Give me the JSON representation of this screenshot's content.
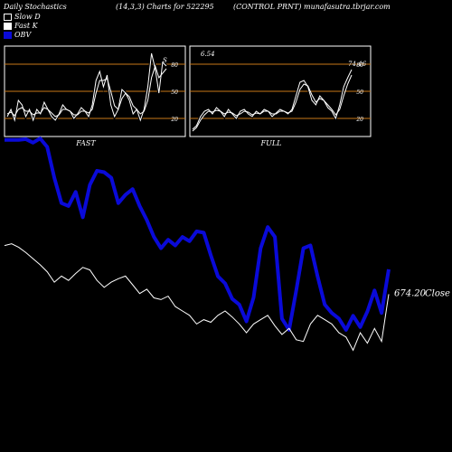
{
  "header": {
    "title_left": "Daily Stochastics",
    "title_mid": "(14,3,3) Charts for 522295",
    "title_right": "(CONTROL PRNT) munafasutra.tbrjar.com"
  },
  "legend": {
    "items": [
      {
        "label": "Slow  D",
        "color": "#000000",
        "border": "#ffffff"
      },
      {
        "label": "Fast K",
        "color": "#ffffff",
        "border": "#ffffff"
      },
      {
        "label": "OBV",
        "color": "#0a0ad8",
        "border": "#0a0ad8"
      }
    ]
  },
  "colors": {
    "background": "#000000",
    "price_line": "#ffffff",
    "obv_line": "#0a0ad8",
    "panel_border": "#ffffff",
    "level_lines": "#c87818"
  },
  "chart_data": [
    {
      "type": "line",
      "panel": "fast",
      "label": "FAST",
      "end_label": "S",
      "ytick_labels": [
        "80",
        "50",
        "20"
      ],
      "levels": [
        80,
        50,
        20
      ],
      "ylim": [
        0,
        100
      ],
      "series": [
        {
          "name": "Fast K",
          "values": [
            22,
            30,
            18,
            40,
            35,
            22,
            30,
            18,
            30,
            25,
            38,
            30,
            22,
            18,
            25,
            35,
            30,
            28,
            20,
            25,
            32,
            28,
            22,
            35,
            62,
            72,
            55,
            68,
            35,
            22,
            30,
            52,
            48,
            40,
            25,
            30,
            18,
            30,
            55,
            92,
            75,
            48,
            82,
            78
          ]
        },
        {
          "name": "Slow  D",
          "values": [
            25,
            27,
            23,
            30,
            32,
            28,
            28,
            24,
            26,
            26,
            32,
            30,
            26,
            22,
            24,
            30,
            30,
            28,
            24,
            24,
            28,
            28,
            26,
            30,
            48,
            62,
            62,
            64,
            50,
            34,
            30,
            42,
            48,
            44,
            34,
            30,
            25,
            28,
            40,
            65,
            78,
            65,
            70,
            75
          ]
        }
      ]
    },
    {
      "type": "line",
      "panel": "full",
      "label": "FULL",
      "start_label": "6.54",
      "end_label": "74.46",
      "ytick_labels": [
        "80",
        "50",
        "20"
      ],
      "levels": [
        80,
        50,
        20
      ],
      "ylim": [
        0,
        100
      ],
      "series": [
        {
          "name": "Fast K",
          "values": [
            8,
            12,
            22,
            28,
            30,
            25,
            32,
            28,
            22,
            30,
            25,
            20,
            28,
            30,
            25,
            22,
            28,
            25,
            30,
            28,
            22,
            26,
            30,
            28,
            25,
            30,
            45,
            60,
            62,
            55,
            40,
            35,
            45,
            40,
            32,
            28,
            20,
            35,
            55,
            65,
            74
          ]
        },
        {
          "name": "Slow  D",
          "values": [
            6,
            10,
            18,
            24,
            28,
            27,
            29,
            28,
            25,
            27,
            26,
            23,
            25,
            28,
            27,
            24,
            26,
            25,
            28,
            28,
            25,
            25,
            28,
            28,
            26,
            28,
            38,
            52,
            58,
            56,
            46,
            38,
            42,
            40,
            35,
            30,
            24,
            30,
            45,
            58,
            68
          ]
        }
      ]
    },
    {
      "type": "line",
      "panel": "main",
      "price_label": "674.20",
      "price_label_suffix": "Close",
      "series": [
        {
          "name": "OBV",
          "values": [
            -0.3,
            -0.3,
            -0.3,
            -0.25,
            -0.5,
            -0.2,
            -0.8,
            -3.0,
            -4.8,
            -5.0,
            -4.0,
            -5.8,
            -3.5,
            -2.5,
            -2.6,
            -3.0,
            -4.8,
            -4.2,
            -3.8,
            -5.0,
            -6.0,
            -7.2,
            -8.0,
            -7.4,
            -7.8,
            -7.2,
            -7.5,
            -6.8,
            -6.9,
            -8.5,
            -10.0,
            -10.5,
            -11.6,
            -12.0,
            -13.2,
            -11.5,
            -8.0,
            -6.5,
            -7.2,
            -13.0,
            -13.8,
            -11.0,
            -8.0,
            -7.8,
            -10.0,
            -12.0,
            -12.6,
            -13.0,
            -13.8,
            -12.8,
            -13.6,
            -12.5,
            -11.0,
            -12.6,
            -9.5
          ]
        },
        {
          "name": "Close",
          "values": [
            730,
            732,
            728,
            722,
            715,
            708,
            700,
            688,
            695,
            690,
            698,
            705,
            702,
            690,
            682,
            688,
            692,
            695,
            685,
            675,
            680,
            670,
            668,
            672,
            660,
            655,
            650,
            640,
            645,
            642,
            650,
            655,
            648,
            640,
            630,
            640,
            645,
            650,
            638,
            628,
            635,
            622,
            620,
            640,
            650,
            645,
            640,
            630,
            625,
            610,
            630,
            618,
            635,
            620,
            674.2
          ]
        }
      ]
    }
  ]
}
